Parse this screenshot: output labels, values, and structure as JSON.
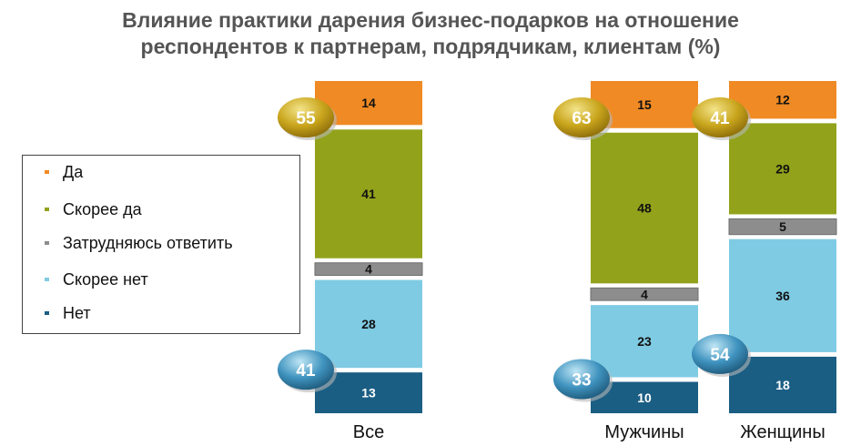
{
  "chart_data": {
    "type": "bar",
    "stacked": true,
    "title": "Влияние практики дарения бизнес-подарков на отношение респондентов к партнерам, подрядчикам, клиентам (%)",
    "title_lines": [
      "Влияние практики дарения бизнес-подарков на отношение",
      "респондентов к партнерам, подрядчикам, клиентам (%)"
    ],
    "categories": [
      "Все",
      "Мужчины",
      "Женщины"
    ],
    "series": [
      {
        "name": "Да",
        "color": "#f08a24",
        "values": [
          14,
          15,
          12
        ]
      },
      {
        "name": "Скорее да",
        "color": "#92a21b",
        "values": [
          41,
          48,
          29
        ]
      },
      {
        "name": "Затрудняюсь ответить",
        "color": "#8d8d8d",
        "values": [
          4,
          4,
          5
        ]
      },
      {
        "name": "Скорее нет",
        "color": "#7fcbe3",
        "values": [
          28,
          23,
          36
        ]
      },
      {
        "name": "Нет",
        "color": "#1b5e83",
        "values": [
          13,
          10,
          18
        ]
      }
    ],
    "totals_positive": [
      55,
      63,
      41
    ],
    "totals_negative": [
      41,
      33,
      54
    ],
    "legend_position": "left",
    "grid": false
  }
}
